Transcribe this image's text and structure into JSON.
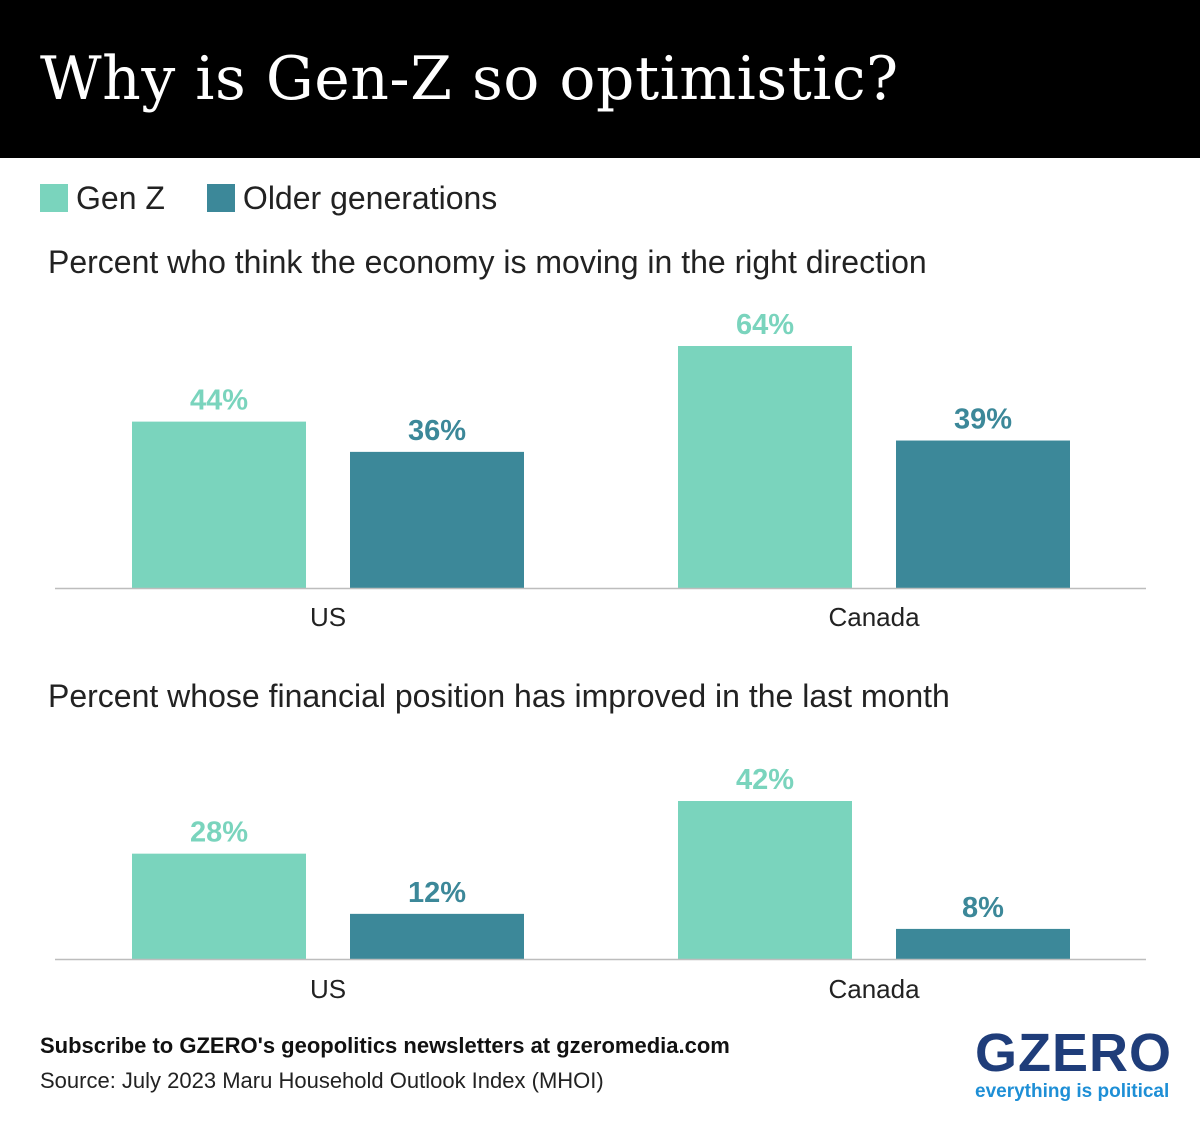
{
  "title": "Why is Gen-Z so optimistic?",
  "legend": [
    {
      "label": "Gen Z",
      "color": "#7ad4bd"
    },
    {
      "label": "Older generations",
      "color": "#3c8899"
    }
  ],
  "chart_data": [
    {
      "type": "bar",
      "title": "Percent who think the economy is moving in the right direction",
      "categories": [
        "US",
        "Canada"
      ],
      "series": [
        {
          "name": "Gen Z",
          "values": [
            44,
            64
          ],
          "labels": [
            "44%",
            "64%"
          ]
        },
        {
          "name": "Older generations",
          "values": [
            36,
            39
          ],
          "labels": [
            "36%",
            "39%"
          ]
        }
      ],
      "xlabel": "",
      "ylabel": "",
      "ylim": [
        0,
        64
      ]
    },
    {
      "type": "bar",
      "title": "Percent whose financial position has improved in the last month",
      "categories": [
        "US",
        "Canada"
      ],
      "series": [
        {
          "name": "Gen Z",
          "values": [
            28,
            42
          ],
          "labels": [
            "28%",
            "42%"
          ]
        },
        {
          "name": "Older generations",
          "values": [
            12,
            8
          ],
          "labels": [
            "12%",
            "8%"
          ]
        }
      ],
      "xlabel": "",
      "ylabel": "",
      "ylim": [
        0,
        42
      ]
    }
  ],
  "footer": {
    "subscribe": "Subscribe to GZERO's geopolitics newsletters at gzeromedia.com",
    "source": "Source: July 2023 Maru Household Outlook Index (MHOI)"
  },
  "logo": {
    "wordmark": "GZERO",
    "tagline": "everything is political"
  }
}
